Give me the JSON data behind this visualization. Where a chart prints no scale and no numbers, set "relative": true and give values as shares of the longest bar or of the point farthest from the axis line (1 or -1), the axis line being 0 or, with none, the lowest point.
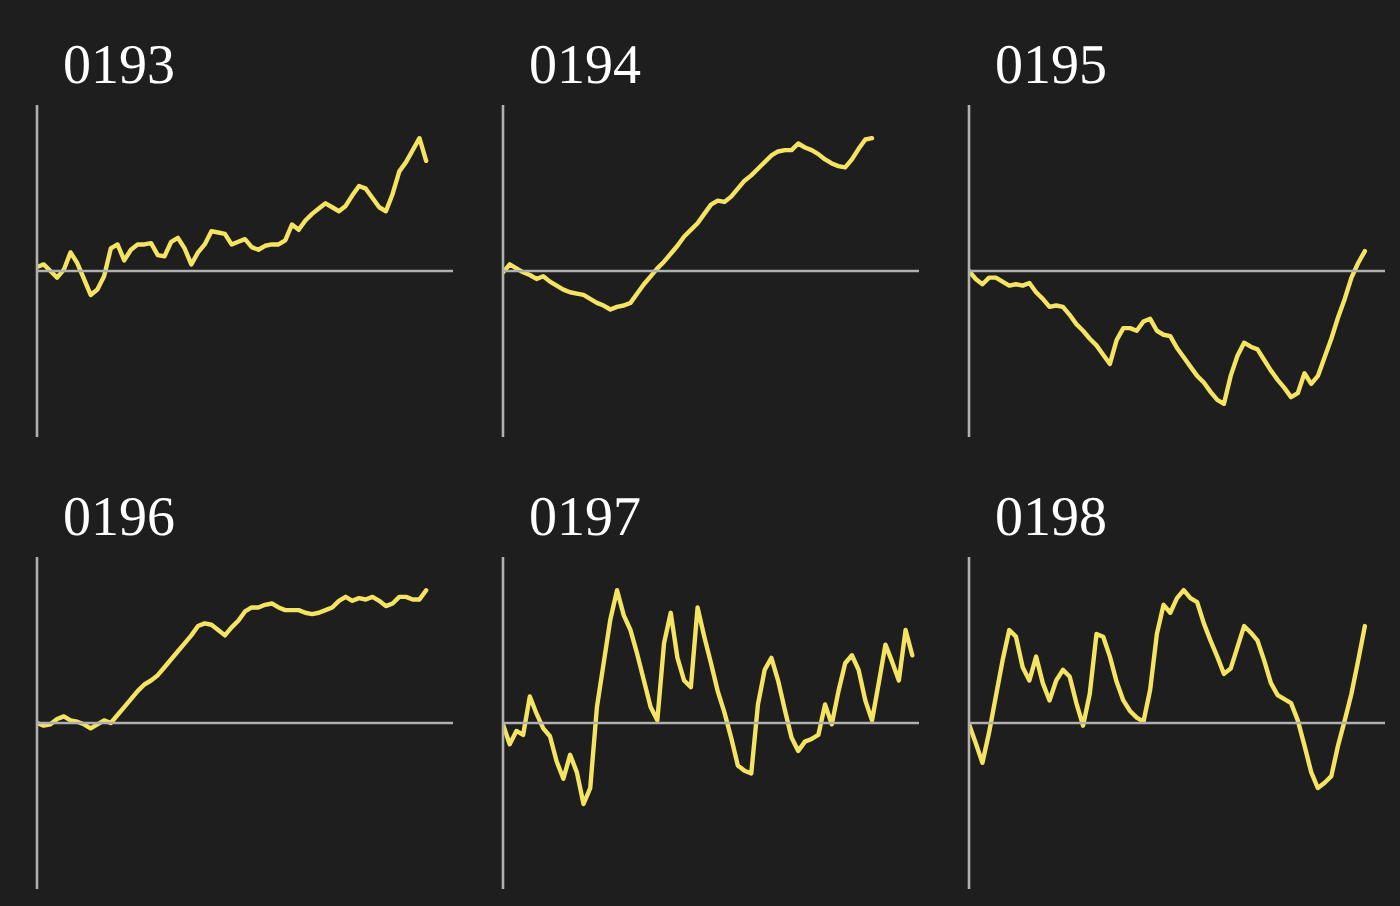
{
  "chart_data": [
    {
      "type": "line",
      "title": "0193",
      "relative": true,
      "color": "#f5e461",
      "categories": [
        null,
        null,
        null,
        null,
        null,
        null,
        null,
        null,
        null,
        null,
        null,
        null,
        null,
        null,
        null,
        null,
        null,
        null,
        null,
        null,
        null,
        null,
        null,
        null,
        null,
        null,
        null,
        null,
        null,
        null,
        null,
        null,
        null,
        null,
        null,
        null,
        null,
        null,
        null,
        null,
        null,
        null,
        null,
        null,
        null,
        null,
        null,
        null,
        null,
        null,
        null,
        null,
        null,
        null,
        null,
        null,
        null,
        null,
        null
      ],
      "values": [
        0.03,
        0.05,
        0.0,
        -0.05,
        0.01,
        0.14,
        0.06,
        -0.06,
        -0.18,
        -0.14,
        -0.04,
        0.17,
        0.2,
        0.08,
        0.16,
        0.2,
        0.2,
        0.21,
        0.12,
        0.11,
        0.22,
        0.25,
        0.17,
        0.05,
        0.14,
        0.2,
        0.3,
        0.29,
        0.28,
        0.2,
        0.22,
        0.24,
        0.18,
        0.16,
        0.19,
        0.2,
        0.2,
        0.23,
        0.35,
        0.31,
        0.38,
        0.43,
        0.47,
        0.51,
        0.48,
        0.45,
        0.49,
        0.57,
        0.64,
        0.62,
        0.55,
        0.48,
        0.45,
        0.58,
        0.75,
        0.82,
        0.91,
        1.0,
        0.83
      ]
    },
    {
      "type": "line",
      "title": "0194",
      "relative": true,
      "color": "#f5e461",
      "categories": [
        null,
        null,
        null,
        null,
        null,
        null,
        null,
        null,
        null,
        null,
        null,
        null,
        null,
        null,
        null,
        null,
        null,
        null,
        null,
        null,
        null,
        null,
        null,
        null,
        null,
        null,
        null,
        null,
        null,
        null,
        null,
        null,
        null,
        null,
        null,
        null,
        null,
        null,
        null,
        null,
        null,
        null,
        null,
        null,
        null,
        null,
        null,
        null,
        null,
        null,
        null,
        null,
        null,
        null,
        null,
        null
      ],
      "values": [
        -0.01,
        0.05,
        0.02,
        -0.01,
        -0.03,
        -0.06,
        -0.04,
        -0.08,
        -0.11,
        -0.14,
        -0.16,
        -0.17,
        -0.18,
        -0.21,
        -0.24,
        -0.26,
        -0.29,
        -0.27,
        -0.26,
        -0.24,
        -0.17,
        -0.1,
        -0.04,
        0.02,
        0.07,
        0.13,
        0.19,
        0.26,
        0.31,
        0.36,
        0.43,
        0.5,
        0.53,
        0.52,
        0.56,
        0.62,
        0.68,
        0.72,
        0.77,
        0.82,
        0.87,
        0.9,
        0.91,
        0.91,
        0.96,
        0.93,
        0.91,
        0.88,
        0.84,
        0.81,
        0.79,
        0.78,
        0.84,
        0.92,
        0.99,
        1.0
      ]
    },
    {
      "type": "line",
      "title": "0195",
      "relative": true,
      "color": "#f5e461",
      "categories": [
        null,
        null,
        null,
        null,
        null,
        null,
        null,
        null,
        null,
        null,
        null,
        null,
        null,
        null,
        null,
        null,
        null,
        null,
        null,
        null,
        null,
        null,
        null,
        null,
        null,
        null,
        null,
        null,
        null,
        null,
        null,
        null,
        null,
        null,
        null,
        null,
        null,
        null,
        null,
        null,
        null,
        null,
        null,
        null,
        null,
        null,
        null,
        null,
        null,
        null,
        null,
        null,
        null,
        null,
        null,
        null,
        null,
        null,
        null,
        null
      ],
      "values": [
        0,
        -0.06,
        -0.1,
        -0.05,
        -0.05,
        -0.08,
        -0.11,
        -0.1,
        -0.11,
        -0.09,
        -0.16,
        -0.21,
        -0.27,
        -0.26,
        -0.27,
        -0.33,
        -0.4,
        -0.45,
        -0.51,
        -0.56,
        -0.63,
        -0.7,
        -0.52,
        -0.43,
        -0.43,
        -0.45,
        -0.38,
        -0.36,
        -0.45,
        -0.48,
        -0.49,
        -0.58,
        -0.65,
        -0.72,
        -0.79,
        -0.84,
        -0.91,
        -0.97,
        -1.0,
        -0.79,
        -0.64,
        -0.54,
        -0.57,
        -0.59,
        -0.67,
        -0.75,
        -0.82,
        -0.88,
        -0.95,
        -0.92,
        -0.77,
        -0.85,
        -0.79,
        -0.65,
        -0.51,
        -0.35,
        -0.21,
        -0.05,
        0.06,
        0.15
      ]
    },
    {
      "type": "line",
      "title": "0196",
      "relative": true,
      "color": "#f5e461",
      "categories": [
        null,
        null,
        null,
        null,
        null,
        null,
        null,
        null,
        null,
        null,
        null,
        null,
        null,
        null,
        null,
        null,
        null,
        null,
        null,
        null,
        null,
        null,
        null,
        null,
        null,
        null,
        null,
        null,
        null,
        null,
        null,
        null,
        null,
        null,
        null,
        null,
        null,
        null,
        null,
        null,
        null,
        null,
        null,
        null,
        null,
        null,
        null,
        null,
        null,
        null,
        null,
        null,
        null,
        null,
        null,
        null,
        null,
        null,
        null
      ],
      "values": [
        0,
        -0.02,
        -0.01,
        0.03,
        0.05,
        0.02,
        0.01,
        -0.01,
        -0.04,
        -0.01,
        0.02,
        0,
        0.06,
        0.12,
        0.18,
        0.24,
        0.29,
        0.32,
        0.36,
        0.42,
        0.48,
        0.54,
        0.6,
        0.66,
        0.73,
        0.75,
        0.74,
        0.7,
        0.66,
        0.72,
        0.77,
        0.84,
        0.87,
        0.87,
        0.89,
        0.9,
        0.87,
        0.85,
        0.85,
        0.85,
        0.83,
        0.82,
        0.83,
        0.85,
        0.87,
        0.92,
        0.95,
        0.92,
        0.94,
        0.93,
        0.95,
        0.92,
        0.88,
        0.9,
        0.95,
        0.95,
        0.93,
        0.93,
        1.0
      ]
    },
    {
      "type": "line",
      "title": "0197",
      "relative": true,
      "color": "#f5e461",
      "categories": [
        null,
        null,
        null,
        null,
        null,
        null,
        null,
        null,
        null,
        null,
        null,
        null,
        null,
        null,
        null,
        null,
        null,
        null,
        null,
        null,
        null,
        null,
        null,
        null,
        null,
        null,
        null,
        null,
        null,
        null,
        null,
        null,
        null,
        null,
        null,
        null,
        null,
        null,
        null,
        null,
        null,
        null,
        null,
        null,
        null,
        null,
        null,
        null,
        null,
        null,
        null,
        null,
        null,
        null,
        null,
        null,
        null,
        null,
        null,
        null,
        null,
        null
      ],
      "values": [
        -0.01,
        -0.16,
        -0.06,
        -0.09,
        0.2,
        0.07,
        -0.04,
        -0.1,
        -0.29,
        -0.42,
        -0.24,
        -0.37,
        -0.61,
        -0.49,
        0.12,
        0.45,
        0.78,
        1.0,
        0.81,
        0.7,
        0.52,
        0.32,
        0.12,
        0.02,
        0.6,
        0.83,
        0.49,
        0.32,
        0.27,
        0.87,
        0.65,
        0.45,
        0.24,
        0.08,
        -0.11,
        -0.32,
        -0.36,
        -0.38,
        0.14,
        0.4,
        0.49,
        0.32,
        0.1,
        -0.11,
        -0.21,
        -0.14,
        -0.12,
        -0.09,
        0.14,
        -0.01,
        0.24,
        0.45,
        0.51,
        0.4,
        0.17,
        0.02,
        0.3,
        0.59,
        0.46,
        0.32,
        0.7,
        0.51
      ]
    },
    {
      "type": "line",
      "title": "0198",
      "relative": true,
      "color": "#f5e461",
      "categories": [
        null,
        null,
        null,
        null,
        null,
        null,
        null,
        null,
        null,
        null,
        null,
        null,
        null,
        null,
        null,
        null,
        null,
        null,
        null,
        null,
        null,
        null,
        null,
        null,
        null,
        null,
        null,
        null,
        null,
        null,
        null,
        null,
        null,
        null,
        null,
        null,
        null,
        null,
        null,
        null,
        null,
        null,
        null,
        null,
        null,
        null,
        null,
        null,
        null,
        null,
        null,
        null,
        null,
        null,
        null,
        null,
        null,
        null,
        null,
        null
      ],
      "values": [
        -0.01,
        -0.15,
        -0.3,
        -0.07,
        0.2,
        0.47,
        0.7,
        0.65,
        0.42,
        0.32,
        0.5,
        0.3,
        0.17,
        0.32,
        0.4,
        0.35,
        0.15,
        -0.02,
        0.22,
        0.67,
        0.65,
        0.5,
        0.31,
        0.17,
        0.09,
        0.04,
        0.01,
        0.25,
        0.67,
        0.89,
        0.83,
        0.94,
        1.0,
        0.94,
        0.91,
        0.75,
        0.62,
        0.5,
        0.37,
        0.41,
        0.57,
        0.73,
        0.68,
        0.62,
        0.47,
        0.3,
        0.21,
        0.18,
        0.15,
        0.02,
        -0.17,
        -0.37,
        -0.49,
        -0.45,
        -0.4,
        -0.17,
        0.02,
        0.22,
        0.47,
        0.73
      ]
    }
  ]
}
